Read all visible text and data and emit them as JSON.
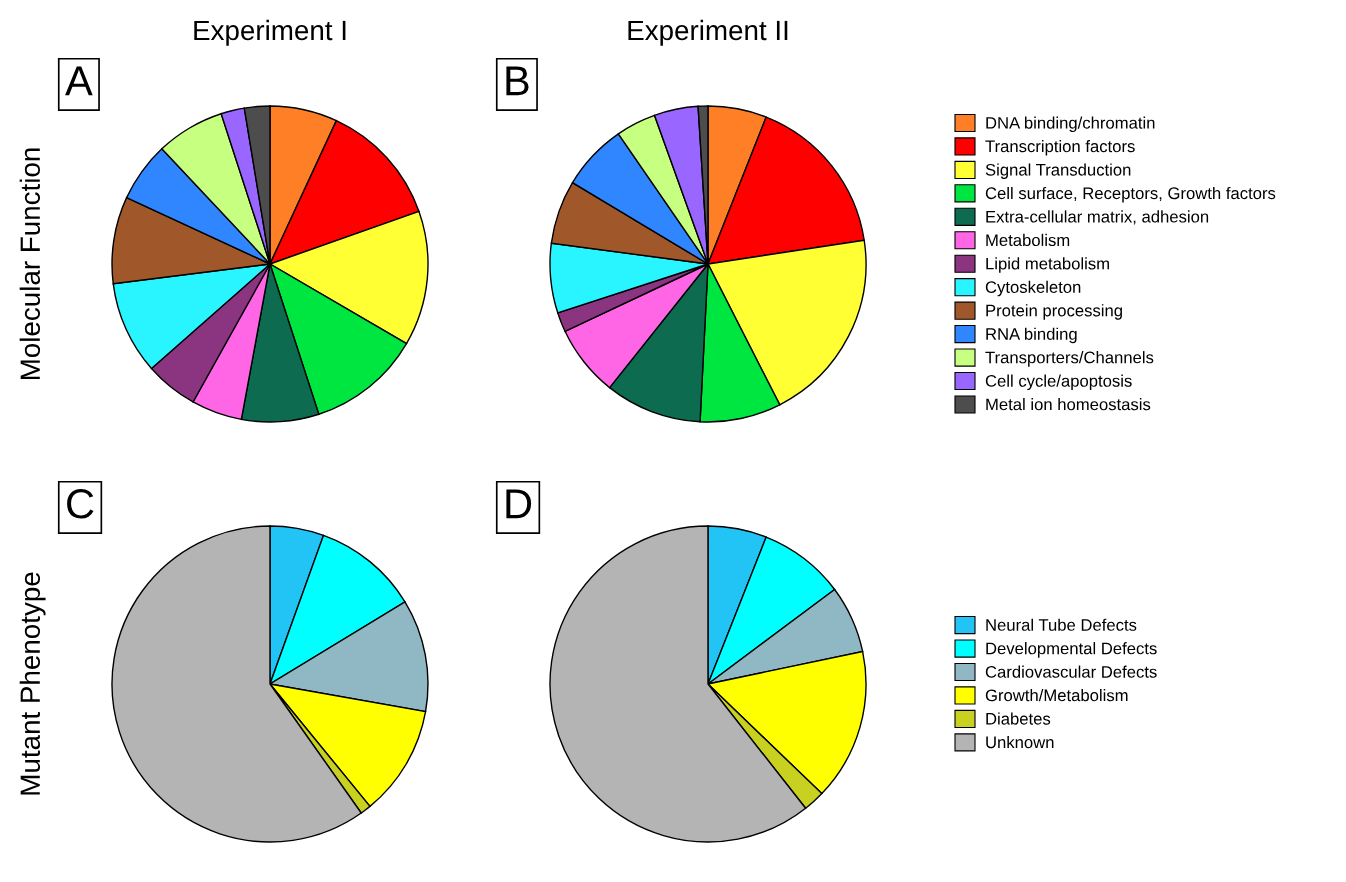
{
  "chart_data": [
    {
      "type": "pie",
      "title": "Experiment I",
      "ylabel": "Molecular Function",
      "annotations": [
        "A"
      ],
      "legend": "right",
      "categories": [
        "DNA binding/chromatin",
        "Transcription factors",
        "Signal Transduction",
        "Cell surface, Receptors, Growth factors",
        "Extra-cellular matrix, adhesion",
        "Metabolism",
        "Lipid metabolism",
        "Cytoskeleton",
        "Protein processing",
        "RNA binding",
        "Transporters/Channels",
        "Cell cycle/apoptosis",
        "Metal ion homeostasis"
      ],
      "values": [
        6.9,
        12.7,
        13.8,
        11.6,
        7.9,
        5.2,
        5.4,
        9.5,
        8.9,
        6.1,
        7.0,
        2.4,
        2.6
      ],
      "colors": [
        "#ff7f27",
        "#ff0000",
        "#ffff33",
        "#00e640",
        "#0d6b50",
        "#ff66e6",
        "#8b3580",
        "#28f5ff",
        "#a0582a",
        "#2f86ff",
        "#c7ff80",
        "#9966ff",
        "#4d4d4d"
      ]
    },
    {
      "type": "pie",
      "title": "Experiment II",
      "annotations": [
        "B"
      ],
      "legend": false,
      "categories": [
        null,
        null,
        null,
        null,
        null,
        null,
        null,
        null,
        null,
        null,
        null,
        null,
        null
      ],
      "values": [
        6.0,
        16.6,
        19.9,
        8.3,
        9.9,
        7.3,
        2.0,
        7.1,
        6.5,
        6.8,
        4.1,
        4.5,
        1.0
      ],
      "colors": [
        "#ff7f27",
        "#ff0000",
        "#ffff33",
        "#00e640",
        "#0d6b50",
        "#ff66e6",
        "#8b3580",
        "#28f5ff",
        "#a0582a",
        "#2f86ff",
        "#c7ff80",
        "#9966ff",
        "#4d4d4d"
      ]
    },
    {
      "type": "pie",
      "ylabel": "Mutant Phenotype",
      "annotations": [
        "C"
      ],
      "legend": "right",
      "categories": [
        "Neural Tube Defects",
        "Developmental Defects",
        "Cardiovascular Defects",
        "Growth/Metabolism",
        "Diabetes",
        "Unknown"
      ],
      "values": [
        5.5,
        10.8,
        11.5,
        11.3,
        1.1,
        59.8
      ],
      "colors": [
        "#22c4f5",
        "#00ffff",
        "#8fb8c4",
        "#ffff00",
        "#c8d020",
        "#b5b4b5"
      ]
    },
    {
      "type": "pie",
      "annotations": [
        "D"
      ],
      "legend": false,
      "categories": [
        null,
        null,
        null,
        null,
        null,
        null
      ],
      "values": [
        6.0,
        8.8,
        6.9,
        15.5,
        2.2,
        60.6
      ],
      "colors": [
        "#22c4f5",
        "#00ffff",
        "#8fb8c4",
        "#ffff00",
        "#c8d020",
        "#b5b4b5"
      ]
    }
  ]
}
